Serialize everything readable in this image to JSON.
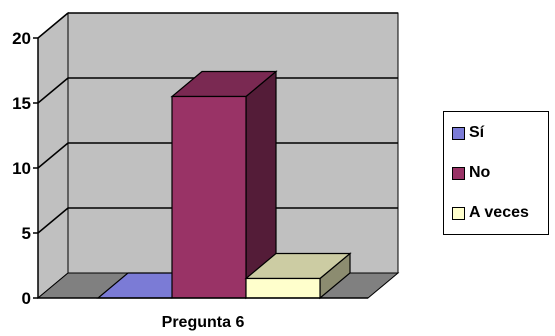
{
  "chart_data": {
    "type": "bar",
    "categories": [
      "Pregunta 6"
    ],
    "series": [
      {
        "name": "Sí",
        "values": [
          0
        ],
        "color": "#7b7bd6"
      },
      {
        "name": "No",
        "values": [
          15.5
        ],
        "color": "#993366"
      },
      {
        "name": "A veces",
        "values": [
          1.5
        ],
        "color": "#ffffcc"
      }
    ],
    "ylim": [
      0,
      20
    ],
    "yticks": [
      "0",
      "5",
      "10",
      "15",
      "20"
    ],
    "grid": true,
    "legend_position": "right",
    "title": "",
    "xlabel": "",
    "ylabel": ""
  }
}
